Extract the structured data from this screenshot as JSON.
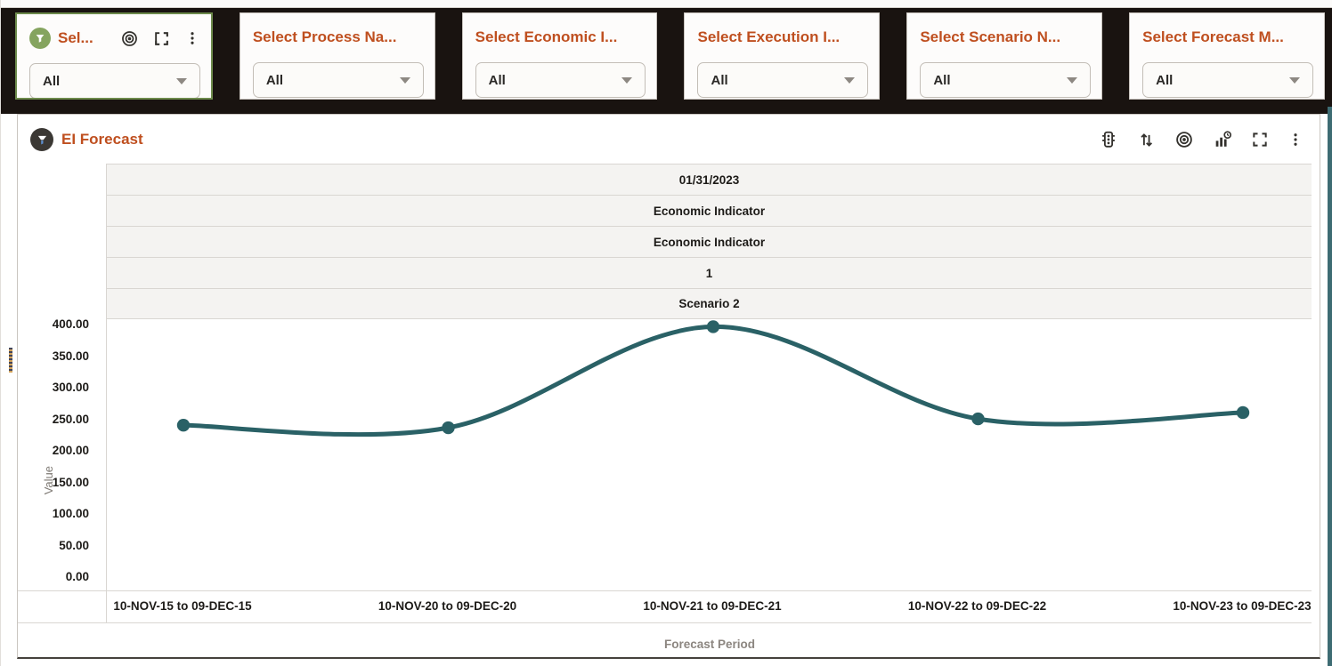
{
  "filters": {
    "cards": [
      {
        "title": "Sel...",
        "value": "All"
      },
      {
        "title": "Select Process Na...",
        "value": "All"
      },
      {
        "title": "Select Economic I...",
        "value": "All"
      },
      {
        "title": "Select Execution I...",
        "value": "All"
      },
      {
        "title": "Select Scenario N...",
        "value": "All"
      },
      {
        "title": "Select Forecast M...",
        "value": "All"
      }
    ],
    "card_toolbar_icons": [
      "target-icon",
      "maximize-icon",
      "menu-icon"
    ]
  },
  "panel": {
    "title": "EI Forecast",
    "toolbar_icons": [
      "traffic-light-icon",
      "sort-icon",
      "target-icon",
      "chart-refresh-icon",
      "maximize-icon",
      "menu-icon"
    ],
    "pivot_header_rows": [
      "01/31/2023",
      "Economic Indicator",
      "Economic Indicator",
      "1",
      "Scenario 2"
    ]
  },
  "chart_data": {
    "type": "line",
    "title": "EI Forecast",
    "categories": [
      "10-NOV-15 to 09-DEC-15",
      "10-NOV-20 to 09-DEC-20",
      "10-NOV-21 to 09-DEC-21",
      "10-NOV-22 to 09-DEC-22",
      "10-NOV-23 to 09-DEC-23"
    ],
    "series": [
      {
        "name": "Value",
        "values": [
          242,
          238,
          398,
          252,
          262
        ]
      }
    ],
    "xlabel": "Forecast Period",
    "ylabel": "Value",
    "ylim": [
      0,
      400
    ],
    "ytick_labels": [
      "0.00",
      "50.00",
      "100.00",
      "150.00",
      "200.00",
      "250.00",
      "300.00",
      "350.00",
      "400.00"
    ],
    "grid": false,
    "legend": "none",
    "line_color": "#2a6166",
    "marker": "circle"
  },
  "colors": {
    "accent_orange": "#bf4f1f",
    "line_teal": "#2a6166",
    "filter_badge_green": "#85a45f",
    "band_black": "#191310",
    "scrollbar_teal": "#3e6c73"
  }
}
